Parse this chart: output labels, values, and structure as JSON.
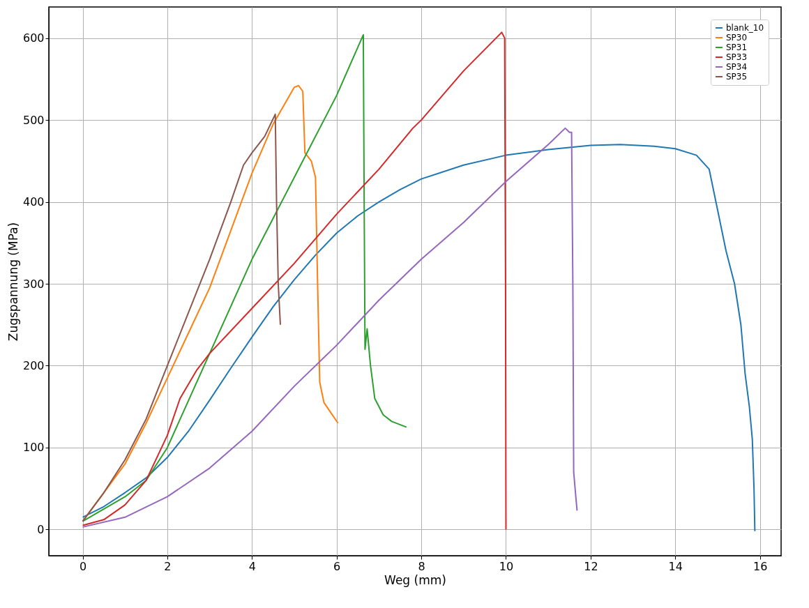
{
  "chart_data": {
    "type": "line",
    "xlabel": "Weg (mm)",
    "ylabel": "Zugspannung (MPa)",
    "xlim": [
      -0.8,
      16.5
    ],
    "ylim": [
      -32,
      638
    ],
    "xticks": [
      0,
      2,
      4,
      6,
      8,
      10,
      12,
      14,
      16
    ],
    "yticks": [
      0,
      100,
      200,
      300,
      400,
      500,
      600
    ],
    "grid": true,
    "legend": "top right",
    "line_style": "solid",
    "marker": "none",
    "series": [
      {
        "name": "blank_10",
        "color": "#1f77b4",
        "x": [
          0,
          0.5,
          1,
          1.5,
          2,
          2.5,
          3,
          3.5,
          4,
          4.5,
          5,
          5.5,
          6,
          6.5,
          7,
          7.5,
          8,
          9,
          10,
          11,
          12,
          12.7,
          13.5,
          14,
          14.5,
          14.8,
          15,
          15.2,
          15.4,
          15.55,
          15.65,
          15.75,
          15.82,
          15.86,
          15.88
        ],
        "values": [
          15,
          28,
          45,
          63,
          88,
          120,
          158,
          197,
          235,
          272,
          305,
          335,
          362,
          383,
          400,
          415,
          428,
          445,
          457,
          464,
          469,
          470,
          468,
          465,
          457,
          440,
          390,
          340,
          300,
          250,
          190,
          150,
          110,
          50,
          -2
        ]
      },
      {
        "name": "SP30",
        "color": "#ff7f0e",
        "x": [
          0,
          0.5,
          1,
          1.5,
          2,
          2.5,
          3,
          3.5,
          4,
          4.5,
          5,
          5.1,
          5.2,
          5.25,
          5.4,
          5.5,
          5.55,
          5.6,
          5.7,
          6.03
        ],
        "values": [
          10,
          45,
          80,
          130,
          185,
          240,
          295,
          365,
          435,
          495,
          540,
          542,
          535,
          460,
          450,
          430,
          300,
          180,
          155,
          130
        ]
      },
      {
        "name": "SP31",
        "color": "#2ca02c",
        "x": [
          0,
          1,
          1.5,
          2,
          3,
          4,
          5,
          6,
          6.63,
          6.65,
          6.67,
          6.72,
          6.8,
          6.9,
          7.1,
          7.3,
          7.65
        ],
        "values": [
          10,
          40,
          60,
          100,
          215,
          330,
          430,
          530,
          604,
          400,
          220,
          245,
          200,
          160,
          140,
          132,
          125
        ]
      },
      {
        "name": "SP33",
        "color": "#d62728",
        "x": [
          0,
          0.5,
          1,
          1.5,
          2,
          2.3,
          2.7,
          3,
          4,
          5,
          6,
          7,
          7.8,
          8,
          9,
          9.9,
          9.97,
          9.99,
          10
        ],
        "values": [
          5,
          12,
          30,
          60,
          115,
          160,
          195,
          215,
          270,
          325,
          385,
          440,
          490,
          500,
          560,
          607,
          600,
          300,
          0
        ]
      },
      {
        "name": "SP34",
        "color": "#9467bd",
        "x": [
          0,
          1,
          2,
          3,
          4,
          5,
          6,
          7,
          8,
          9,
          10,
          11,
          11.4,
          11.5,
          11.55,
          11.58,
          11.6,
          11.65,
          11.68
        ],
        "values": [
          3,
          15,
          40,
          75,
          120,
          175,
          225,
          280,
          330,
          375,
          425,
          470,
          490,
          485,
          485,
          300,
          70,
          40,
          23
        ]
      },
      {
        "name": "SP35",
        "color": "#8c564b",
        "x": [
          0,
          0.5,
          1,
          1.5,
          2,
          2.5,
          3,
          3.5,
          3.8,
          4,
          4.3,
          4.55,
          4.58,
          4.62,
          4.67
        ],
        "values": [
          10,
          45,
          85,
          135,
          200,
          265,
          330,
          400,
          445,
          460,
          480,
          507,
          400,
          300,
          250
        ]
      }
    ]
  }
}
